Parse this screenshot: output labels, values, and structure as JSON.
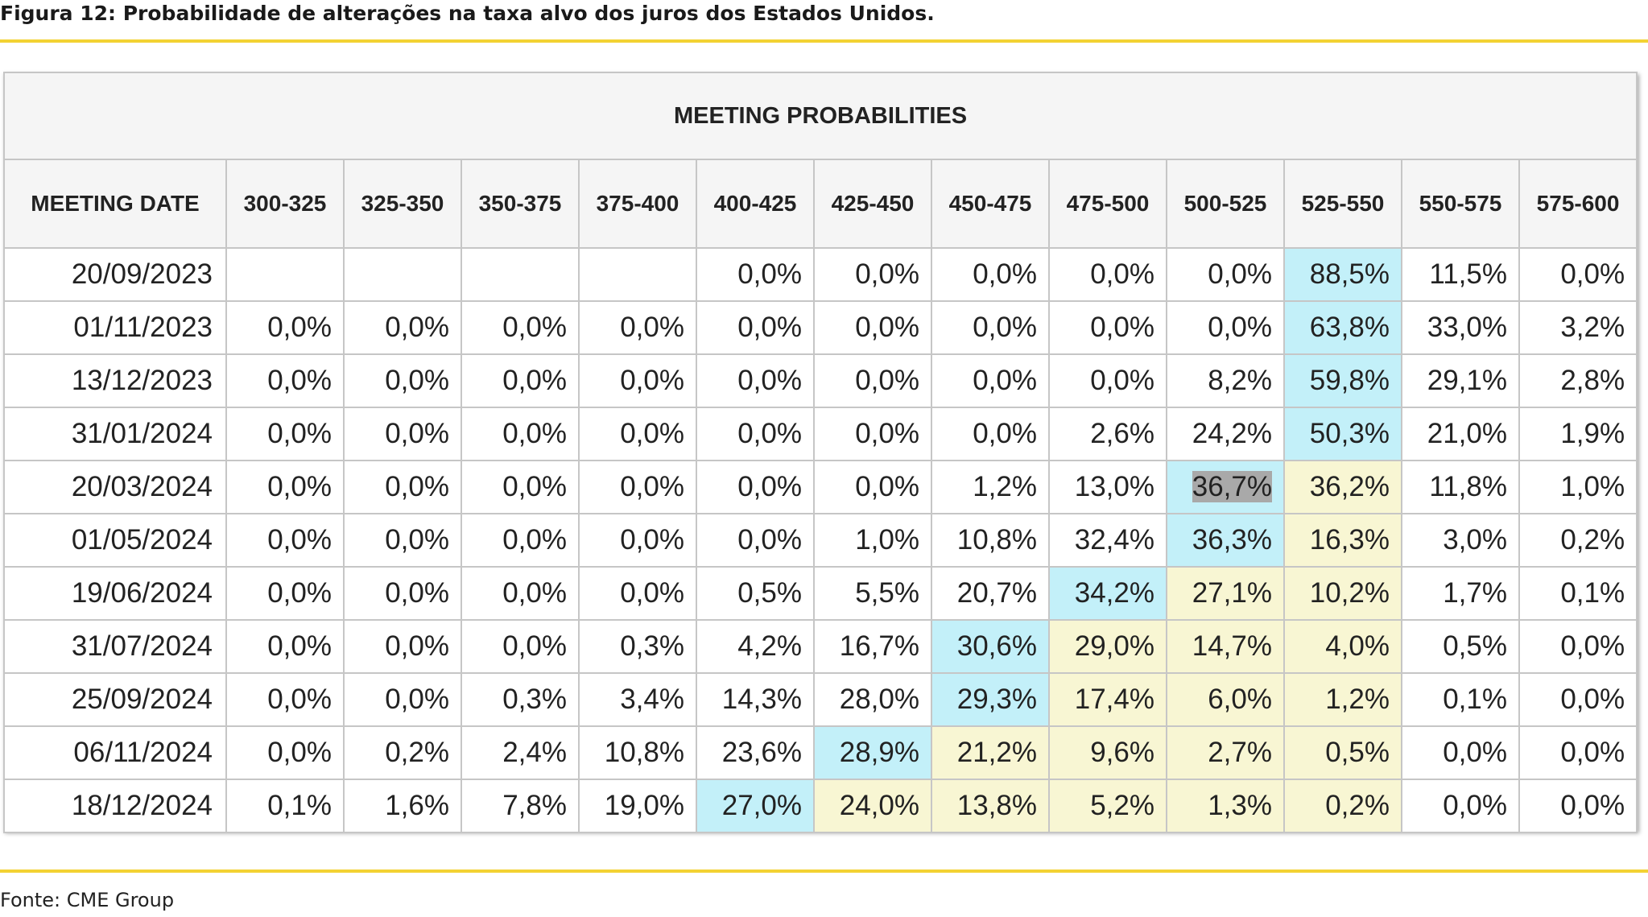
{
  "figure": {
    "title": "Figura 12: Probabilidade de alterações na taxa alvo dos juros dos Estados Unidos.",
    "source": "Fonte: CME Group"
  },
  "colors": {
    "rule": "#f3d233",
    "highlight_max": "#c3f0f9",
    "highlight_shaded": "#f8f6d3",
    "header_bg": "#f5f5f5",
    "selected_cell": "#a9a9a9"
  },
  "chart_data": {
    "type": "table",
    "title": "MEETING PROBABILITIES",
    "row_header": "MEETING DATE",
    "columns": [
      "300-325",
      "325-350",
      "350-375",
      "375-400",
      "400-425",
      "425-450",
      "450-475",
      "475-500",
      "500-525",
      "525-550",
      "550-575",
      "575-600"
    ],
    "rows": [
      {
        "date": "20/09/2023",
        "values": [
          "",
          "",
          "",
          "",
          "0,0%",
          "0,0%",
          "0,0%",
          "0,0%",
          "0,0%",
          "88,5%",
          "11,5%",
          "0,0%"
        ],
        "max_col": 9,
        "shaded": []
      },
      {
        "date": "01/11/2023",
        "values": [
          "0,0%",
          "0,0%",
          "0,0%",
          "0,0%",
          "0,0%",
          "0,0%",
          "0,0%",
          "0,0%",
          "0,0%",
          "63,8%",
          "33,0%",
          "3,2%"
        ],
        "max_col": 9,
        "shaded": []
      },
      {
        "date": "13/12/2023",
        "values": [
          "0,0%",
          "0,0%",
          "0,0%",
          "0,0%",
          "0,0%",
          "0,0%",
          "0,0%",
          "0,0%",
          "8,2%",
          "59,8%",
          "29,1%",
          "2,8%"
        ],
        "max_col": 9,
        "shaded": []
      },
      {
        "date": "31/01/2024",
        "values": [
          "0,0%",
          "0,0%",
          "0,0%",
          "0,0%",
          "0,0%",
          "0,0%",
          "0,0%",
          "2,6%",
          "24,2%",
          "50,3%",
          "21,0%",
          "1,9%"
        ],
        "max_col": 9,
        "shaded": []
      },
      {
        "date": "20/03/2024",
        "values": [
          "0,0%",
          "0,0%",
          "0,0%",
          "0,0%",
          "0,0%",
          "0,0%",
          "1,2%",
          "13,0%",
          "36,7%",
          "36,2%",
          "11,8%",
          "1,0%"
        ],
        "max_col": 8,
        "shaded": [
          9
        ],
        "selected_col": 8
      },
      {
        "date": "01/05/2024",
        "values": [
          "0,0%",
          "0,0%",
          "0,0%",
          "0,0%",
          "0,0%",
          "1,0%",
          "10,8%",
          "32,4%",
          "36,3%",
          "16,3%",
          "3,0%",
          "0,2%"
        ],
        "max_col": 8,
        "shaded": [
          9
        ]
      },
      {
        "date": "19/06/2024",
        "values": [
          "0,0%",
          "0,0%",
          "0,0%",
          "0,0%",
          "0,5%",
          "5,5%",
          "20,7%",
          "34,2%",
          "27,1%",
          "10,2%",
          "1,7%",
          "0,1%"
        ],
        "max_col": 7,
        "shaded": [
          8,
          9
        ]
      },
      {
        "date": "31/07/2024",
        "values": [
          "0,0%",
          "0,0%",
          "0,0%",
          "0,3%",
          "4,2%",
          "16,7%",
          "30,6%",
          "29,0%",
          "14,7%",
          "4,0%",
          "0,5%",
          "0,0%"
        ],
        "max_col": 6,
        "shaded": [
          7,
          8,
          9
        ]
      },
      {
        "date": "25/09/2024",
        "values": [
          "0,0%",
          "0,0%",
          "0,3%",
          "3,4%",
          "14,3%",
          "28,0%",
          "29,3%",
          "17,4%",
          "6,0%",
          "1,2%",
          "0,1%",
          "0,0%"
        ],
        "max_col": 6,
        "shaded": [
          7,
          8,
          9
        ]
      },
      {
        "date": "06/11/2024",
        "values": [
          "0,0%",
          "0,2%",
          "2,4%",
          "10,8%",
          "23,6%",
          "28,9%",
          "21,2%",
          "9,6%",
          "2,7%",
          "0,5%",
          "0,0%",
          "0,0%"
        ],
        "max_col": 5,
        "shaded": [
          6,
          7,
          8,
          9
        ]
      },
      {
        "date": "18/12/2024",
        "values": [
          "0,1%",
          "1,6%",
          "7,8%",
          "19,0%",
          "27,0%",
          "24,0%",
          "13,8%",
          "5,2%",
          "1,3%",
          "0,2%",
          "0,0%",
          "0,0%"
        ],
        "max_col": 4,
        "shaded": [
          5,
          6,
          7,
          8,
          9
        ]
      }
    ]
  }
}
